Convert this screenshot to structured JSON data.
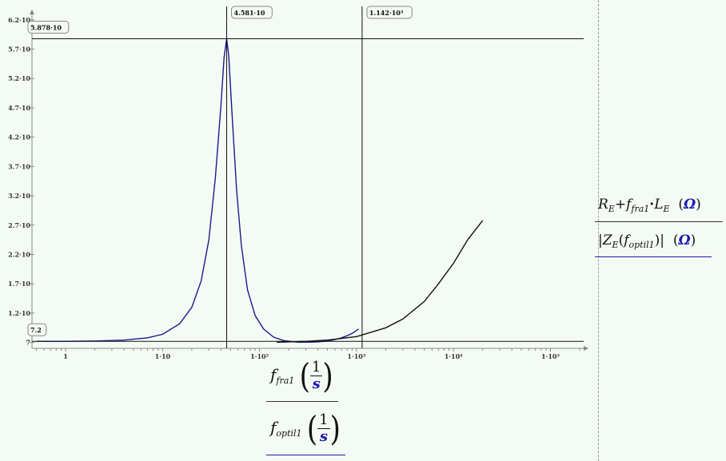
{
  "chart_data": {
    "type": "line",
    "x_scale": "log",
    "xlim": [
      0.45,
      220000
    ],
    "ylim": [
      6.0,
      63.2
    ],
    "x_ticks": [
      {
        "value": 1,
        "label": "1"
      },
      {
        "value": 10,
        "label": "1·10"
      },
      {
        "value": 100,
        "label": "1·10²"
      },
      {
        "value": 1000,
        "label": "1·10³"
      },
      {
        "value": 10000,
        "label": "1·10⁴"
      },
      {
        "value": 100000,
        "label": "1·10⁵"
      }
    ],
    "y_ticks": [
      {
        "value": 7,
        "label": "7"
      },
      {
        "value": 12,
        "label": "1.2·10"
      },
      {
        "value": 17,
        "label": "1.7·10"
      },
      {
        "value": 22,
        "label": "2.2·10"
      },
      {
        "value": 27,
        "label": "2.7·10"
      },
      {
        "value": 32,
        "label": "3.2·10"
      },
      {
        "value": 37,
        "label": "3.7·10"
      },
      {
        "value": 42,
        "label": "4.2·10"
      },
      {
        "value": 47,
        "label": "4.7·10"
      },
      {
        "value": 52,
        "label": "5.2·10"
      },
      {
        "value": 57,
        "label": "5.7·10"
      },
      {
        "value": 62,
        "label": "6.2·10"
      }
    ],
    "series": [
      {
        "color": "#1a1a8c",
        "x": [
          0.5,
          1,
          2,
          4,
          7,
          10,
          15,
          20,
          25,
          30,
          35,
          40,
          43,
          45.81,
          48,
          52,
          58,
          65,
          75,
          90,
          110,
          140,
          180,
          250,
          320,
          400,
          500,
          600,
          700,
          800,
          900,
          1000,
          1050
        ],
        "y": [
          7.2,
          7.2,
          7.25,
          7.4,
          7.8,
          8.4,
          10.2,
          13.0,
          17.5,
          24.5,
          35.0,
          47.5,
          55.5,
          58.78,
          56.0,
          46.0,
          33.0,
          23.5,
          16.0,
          11.6,
          9.3,
          7.9,
          7.3,
          7.05,
          7.05,
          7.1,
          7.25,
          7.5,
          7.8,
          8.15,
          8.55,
          9.05,
          9.3
        ]
      },
      {
        "color": "#111111",
        "x": [
          150,
          200,
          300,
          500,
          1000,
          2000,
          3000,
          5000,
          7000,
          10000,
          14000,
          20000
        ],
        "y": [
          7.05,
          7.1,
          7.2,
          7.4,
          8.0,
          9.5,
          11.0,
          14.0,
          17.0,
          20.5,
          24.5,
          27.8
        ]
      }
    ],
    "markers": {
      "vertical": [
        {
          "value": 45.81,
          "label": "4.581·10"
        },
        {
          "value": 1142,
          "label": "1.142·10³"
        }
      ],
      "horizontal": [
        {
          "value": 58.78,
          "label": "5.878·10"
        },
        {
          "value": 7.2,
          "label": "7.2"
        }
      ]
    },
    "grid": false,
    "legend": "none"
  },
  "x_axis_labels": {
    "first": {
      "symbol": "f",
      "subscript": "fra1",
      "unit_num": "1",
      "unit_den": "s"
    },
    "second": {
      "symbol": "f",
      "subscript": "optil1",
      "unit_num": "1",
      "unit_den": "s"
    }
  },
  "y_axis_labels": {
    "first": {
      "R": "R",
      "R_sub": "E",
      "plus": "+",
      "f": "f",
      "f_sub": "fra1",
      "dot": "·",
      "L": "L",
      "L_sub": "E",
      "unit": "Ω"
    },
    "second": {
      "Z": "Z",
      "Z_sub": "E",
      "f": "f",
      "f_sub": "optil1",
      "unit": "Ω"
    }
  }
}
